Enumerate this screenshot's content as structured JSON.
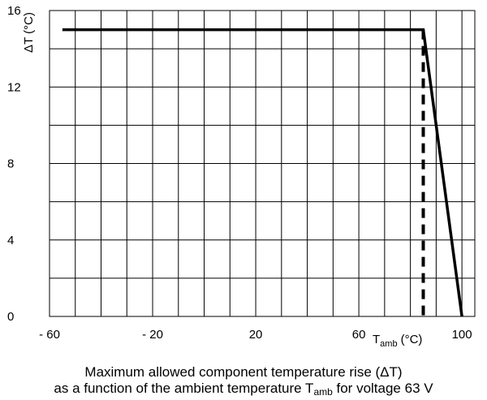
{
  "chart_data": {
    "type": "line",
    "title": "",
    "xlabel": {
      "symbol": "T",
      "sub": "amb",
      "unit": "(°C)"
    },
    "ylabel": "ΔT (°C)",
    "xlim": [
      -60,
      105
    ],
    "ylim": [
      0,
      16
    ],
    "x_ticks": [
      {
        "value": -60,
        "label": "- 60"
      },
      {
        "value": -20,
        "label": "- 20"
      },
      {
        "value": 20,
        "label": "20"
      },
      {
        "value": 60,
        "label": "60"
      },
      {
        "value": 100,
        "label": "100"
      }
    ],
    "y_ticks": [
      {
        "value": 0,
        "label": "0"
      },
      {
        "value": 4,
        "label": "4"
      },
      {
        "value": 8,
        "label": "8"
      },
      {
        "value": 12,
        "label": "12"
      },
      {
        "value": 16,
        "label": "16"
      }
    ],
    "grid": true,
    "x_grid_step": 10,
    "y_grid_step": 2,
    "series": [
      {
        "style": "solid",
        "points": [
          {
            "x": -55,
            "y": 15
          },
          {
            "x": 85,
            "y": 15
          },
          {
            "x": 100,
            "y": 0
          }
        ]
      },
      {
        "style": "dashed",
        "points": [
          {
            "x": 85,
            "y": 15
          },
          {
            "x": 85,
            "y": 0
          }
        ]
      }
    ]
  },
  "caption": {
    "line1": "Maximum allowed component temperature rise (ΔT)",
    "line2_prefix": "as a function of the ambient temperature T",
    "line2_sub": "amb",
    "line2_suffix": " for voltage 63 V"
  }
}
